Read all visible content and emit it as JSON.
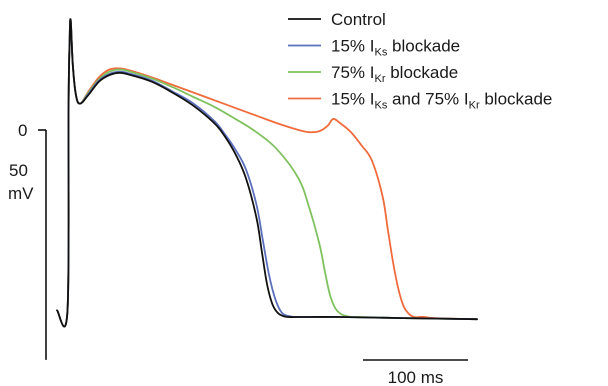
{
  "chart_data": {
    "type": "line",
    "title": "",
    "xlabel": "",
    "ylabel": "",
    "grid": false,
    "legend_placement": "top-right",
    "x_unit": "ms",
    "y_unit": "mV",
    "xlim": [
      -10,
      390
    ],
    "ylim": [
      -86,
      58
    ],
    "series": [
      {
        "key": "control",
        "color": "#111111",
        "x": [
          -10,
          0,
          1,
          2,
          3,
          5,
          8,
          12,
          20,
          30,
          40,
          50,
          60,
          80,
          100,
          120,
          140,
          150,
          160,
          170,
          180,
          185,
          190,
          195,
          200,
          205,
          210,
          220,
          260,
          320,
          390
        ],
        "y": [
          -82,
          -82,
          10,
          40,
          50,
          30,
          16,
          12,
          16,
          22,
          25,
          26,
          25,
          22,
          17,
          11,
          3,
          -3,
          -11,
          -22,
          -40,
          -55,
          -70,
          -79,
          -83,
          -84.5,
          -85,
          -85,
          -85,
          -85.5,
          -86
        ]
      },
      {
        "key": "iks",
        "color": "#5b6fbd",
        "x": [
          -10,
          0,
          1,
          2,
          3,
          5,
          8,
          12,
          20,
          30,
          40,
          50,
          60,
          80,
          100,
          120,
          140,
          150,
          160,
          170,
          180,
          186,
          192,
          198,
          204,
          210,
          216,
          226,
          260,
          320,
          390
        ],
        "y": [
          -82,
          -82,
          10,
          40,
          50,
          30,
          16,
          12,
          16.5,
          22.5,
          25.5,
          26.5,
          25.5,
          22.5,
          17.5,
          12,
          4,
          -2,
          -9,
          -18,
          -34,
          -50,
          -66,
          -77,
          -83,
          -84.5,
          -85,
          -85,
          -85,
          -85.5,
          -86
        ]
      },
      {
        "key": "ikr",
        "color": "#7fc15e",
        "x": [
          -10,
          0,
          1,
          2,
          3,
          5,
          8,
          12,
          20,
          30,
          40,
          50,
          60,
          80,
          100,
          120,
          140,
          160,
          180,
          200,
          220,
          230,
          240,
          245,
          250,
          255,
          260,
          265,
          270,
          280,
          320,
          390
        ],
        "y": [
          -82,
          -82,
          10,
          40,
          50,
          30,
          16,
          12,
          17,
          23,
          26.5,
          27.5,
          26.5,
          23.5,
          19.5,
          15,
          10.5,
          5,
          -1,
          -9,
          -22,
          -35,
          -52,
          -64,
          -75,
          -81,
          -83.5,
          -84.5,
          -85,
          -85,
          -85.5,
          -86
        ]
      },
      {
        "key": "both",
        "color": "#f06b3c",
        "x": [
          -10,
          0,
          1,
          2,
          3,
          5,
          8,
          12,
          20,
          30,
          40,
          50,
          60,
          80,
          100,
          140,
          180,
          200,
          220,
          230,
          240,
          248,
          253,
          260,
          270,
          280,
          290,
          300,
          305,
          310,
          315,
          320,
          325,
          330,
          335,
          340,
          350,
          390
        ],
        "y": [
          -82,
          -82,
          10,
          40,
          50,
          30,
          16,
          12,
          17.5,
          24,
          27.5,
          28,
          27,
          24,
          20.5,
          13.5,
          6.5,
          3,
          0,
          -1,
          -0.5,
          2,
          5,
          3,
          -1,
          -7,
          -14,
          -30,
          -45,
          -60,
          -72,
          -80,
          -83.5,
          -85,
          -85,
          -85,
          -85.5,
          -86
        ]
      }
    ]
  },
  "legend": [
    {
      "series": "control",
      "prefix": "Control",
      "sub": "",
      "middle": "",
      "sub2": "",
      "suffix": ""
    },
    {
      "series": "iks",
      "prefix": "15% I",
      "sub": "Ks",
      "middle": " blockade",
      "sub2": "",
      "suffix": ""
    },
    {
      "series": "ikr",
      "prefix": "75% I",
      "sub": "Kr",
      "middle": " blockade",
      "sub2": "",
      "suffix": ""
    },
    {
      "series": "both",
      "prefix": "15% I",
      "sub": "Ks",
      "middle": " and 75% I",
      "sub2": "Kr",
      "suffix": " blockade"
    }
  ],
  "scale": {
    "zero_label": "0",
    "v_label_value": "50",
    "v_label_unit": "mV",
    "v_bar_mv": 50,
    "t_label": "100 ms",
    "t_bar_ms": 100
  }
}
